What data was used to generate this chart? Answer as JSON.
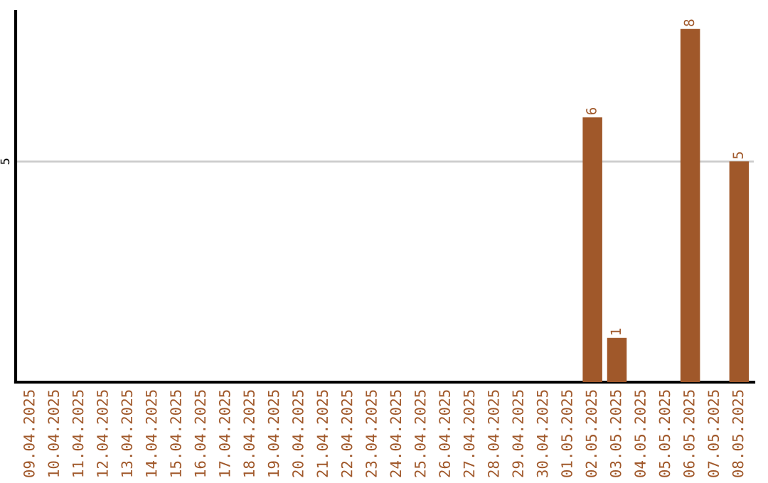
{
  "chart_data": {
    "type": "bar",
    "categories": [
      "09.04.2025",
      "10.04.2025",
      "11.04.2025",
      "12.04.2025",
      "13.04.2025",
      "14.04.2025",
      "15.04.2025",
      "16.04.2025",
      "17.04.2025",
      "18.04.2025",
      "19.04.2025",
      "20.04.2025",
      "21.04.2025",
      "22.04.2025",
      "23.04.2025",
      "24.04.2025",
      "25.04.2025",
      "26.04.2025",
      "27.04.2025",
      "28.04.2025",
      "29.04.2025",
      "30.04.2025",
      "01.05.2025",
      "02.05.2025",
      "03.05.2025",
      "04.05.2025",
      "05.05.2025",
      "06.05.2025",
      "07.05.2025",
      "08.05.2025"
    ],
    "values": [
      null,
      null,
      null,
      null,
      null,
      null,
      null,
      null,
      null,
      null,
      null,
      null,
      null,
      null,
      null,
      null,
      null,
      null,
      null,
      null,
      null,
      null,
      null,
      6,
      1,
      null,
      null,
      8,
      null,
      5
    ],
    "color": "#a0582a",
    "ylim": [
      0,
      8.4
    ],
    "yticks": [
      5
    ],
    "grid": "y",
    "data_labels": true
  }
}
